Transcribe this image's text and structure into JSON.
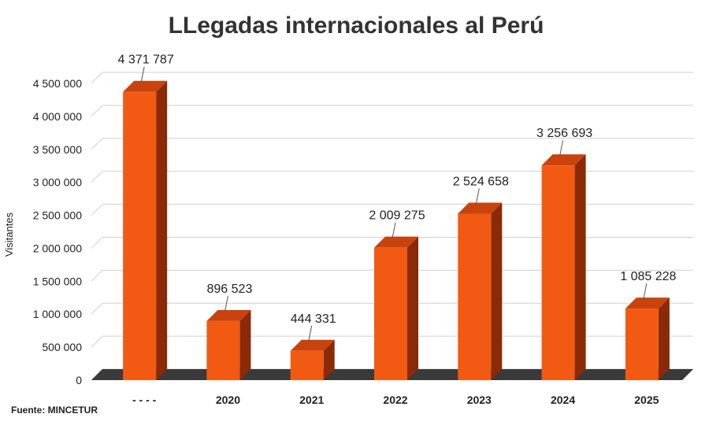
{
  "chart_data": {
    "type": "bar",
    "title": "LLegadas internacionales al Perú",
    "ylabel": "Visitantes",
    "xlabel": "",
    "source": "Fuente: MINCETUR",
    "categories": [
      "- - - -",
      "2020",
      "2021",
      "2022",
      "2023",
      "2024",
      "2025"
    ],
    "values": [
      4371787,
      896523,
      444331,
      2009275,
      2524658,
      3256693,
      1085228
    ],
    "data_labels": [
      "4 371 787",
      "896 523",
      "444 331",
      "2 009 275",
      "2 524 658",
      "3 256 693",
      "1 085 228"
    ],
    "ylim": [
      0,
      4500000
    ],
    "yticks": [
      0,
      500000,
      1000000,
      1500000,
      2000000,
      2500000,
      3000000,
      3500000,
      4000000,
      4500000
    ],
    "ytick_labels": [
      "0",
      "500 000",
      "1 000 000",
      "1 500 000",
      "2 000 000",
      "2 500 000",
      "3 000 000",
      "3 500 000",
      "4 000 000",
      "4 500 000"
    ],
    "grid": true,
    "legend": "none",
    "style": "3d-bar",
    "colors": {
      "bar_front": "#f25a14",
      "bar_side": "#8a2a06",
      "bar_top": "#c8430d",
      "floor": "#3a3a3a",
      "grid": "#d0d0d0"
    }
  }
}
